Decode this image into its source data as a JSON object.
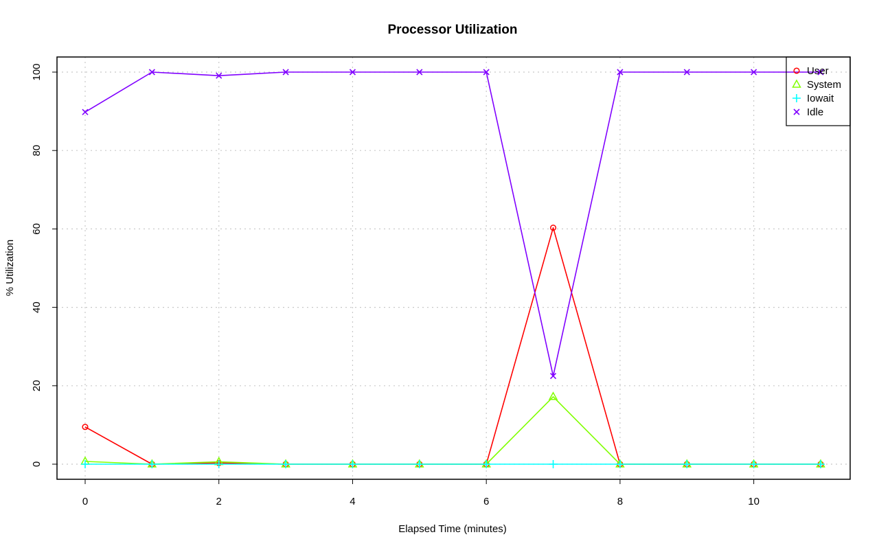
{
  "chart_data": {
    "type": "line",
    "title": "Processor Utilization",
    "xlabel": "Elapsed Time (minutes)",
    "ylabel": "% Utilization",
    "xlim": [
      0,
      11
    ],
    "ylim": [
      0,
      100
    ],
    "x_ticks": [
      0,
      2,
      4,
      6,
      8,
      10
    ],
    "y_ticks": [
      0,
      20,
      40,
      60,
      80,
      100
    ],
    "grid": true,
    "legend_position": "top-right",
    "x": [
      0,
      1,
      2,
      3,
      4,
      5,
      6,
      7,
      8,
      9,
      10,
      11
    ],
    "series": [
      {
        "name": "User",
        "color": "#ff0000",
        "marker": "circle",
        "values": [
          9.5,
          0,
          0.3,
          0,
          0,
          0,
          0,
          60.3,
          0,
          0,
          0,
          0
        ]
      },
      {
        "name": "System",
        "color": "#80ff00",
        "marker": "triangle",
        "values": [
          0.7,
          0,
          0.6,
          0,
          0,
          0,
          0,
          17.2,
          0,
          0,
          0,
          0
        ]
      },
      {
        "name": "Iowait",
        "color": "#00ffff",
        "marker": "plus",
        "values": [
          0,
          0,
          0,
          0,
          0,
          0,
          0,
          0,
          0,
          0,
          0,
          0
        ]
      },
      {
        "name": "Idle",
        "color": "#8000ff",
        "marker": "cross",
        "values": [
          89.8,
          100,
          99.1,
          100,
          100,
          100,
          100,
          22.5,
          100,
          100,
          100,
          100
        ]
      }
    ]
  }
}
